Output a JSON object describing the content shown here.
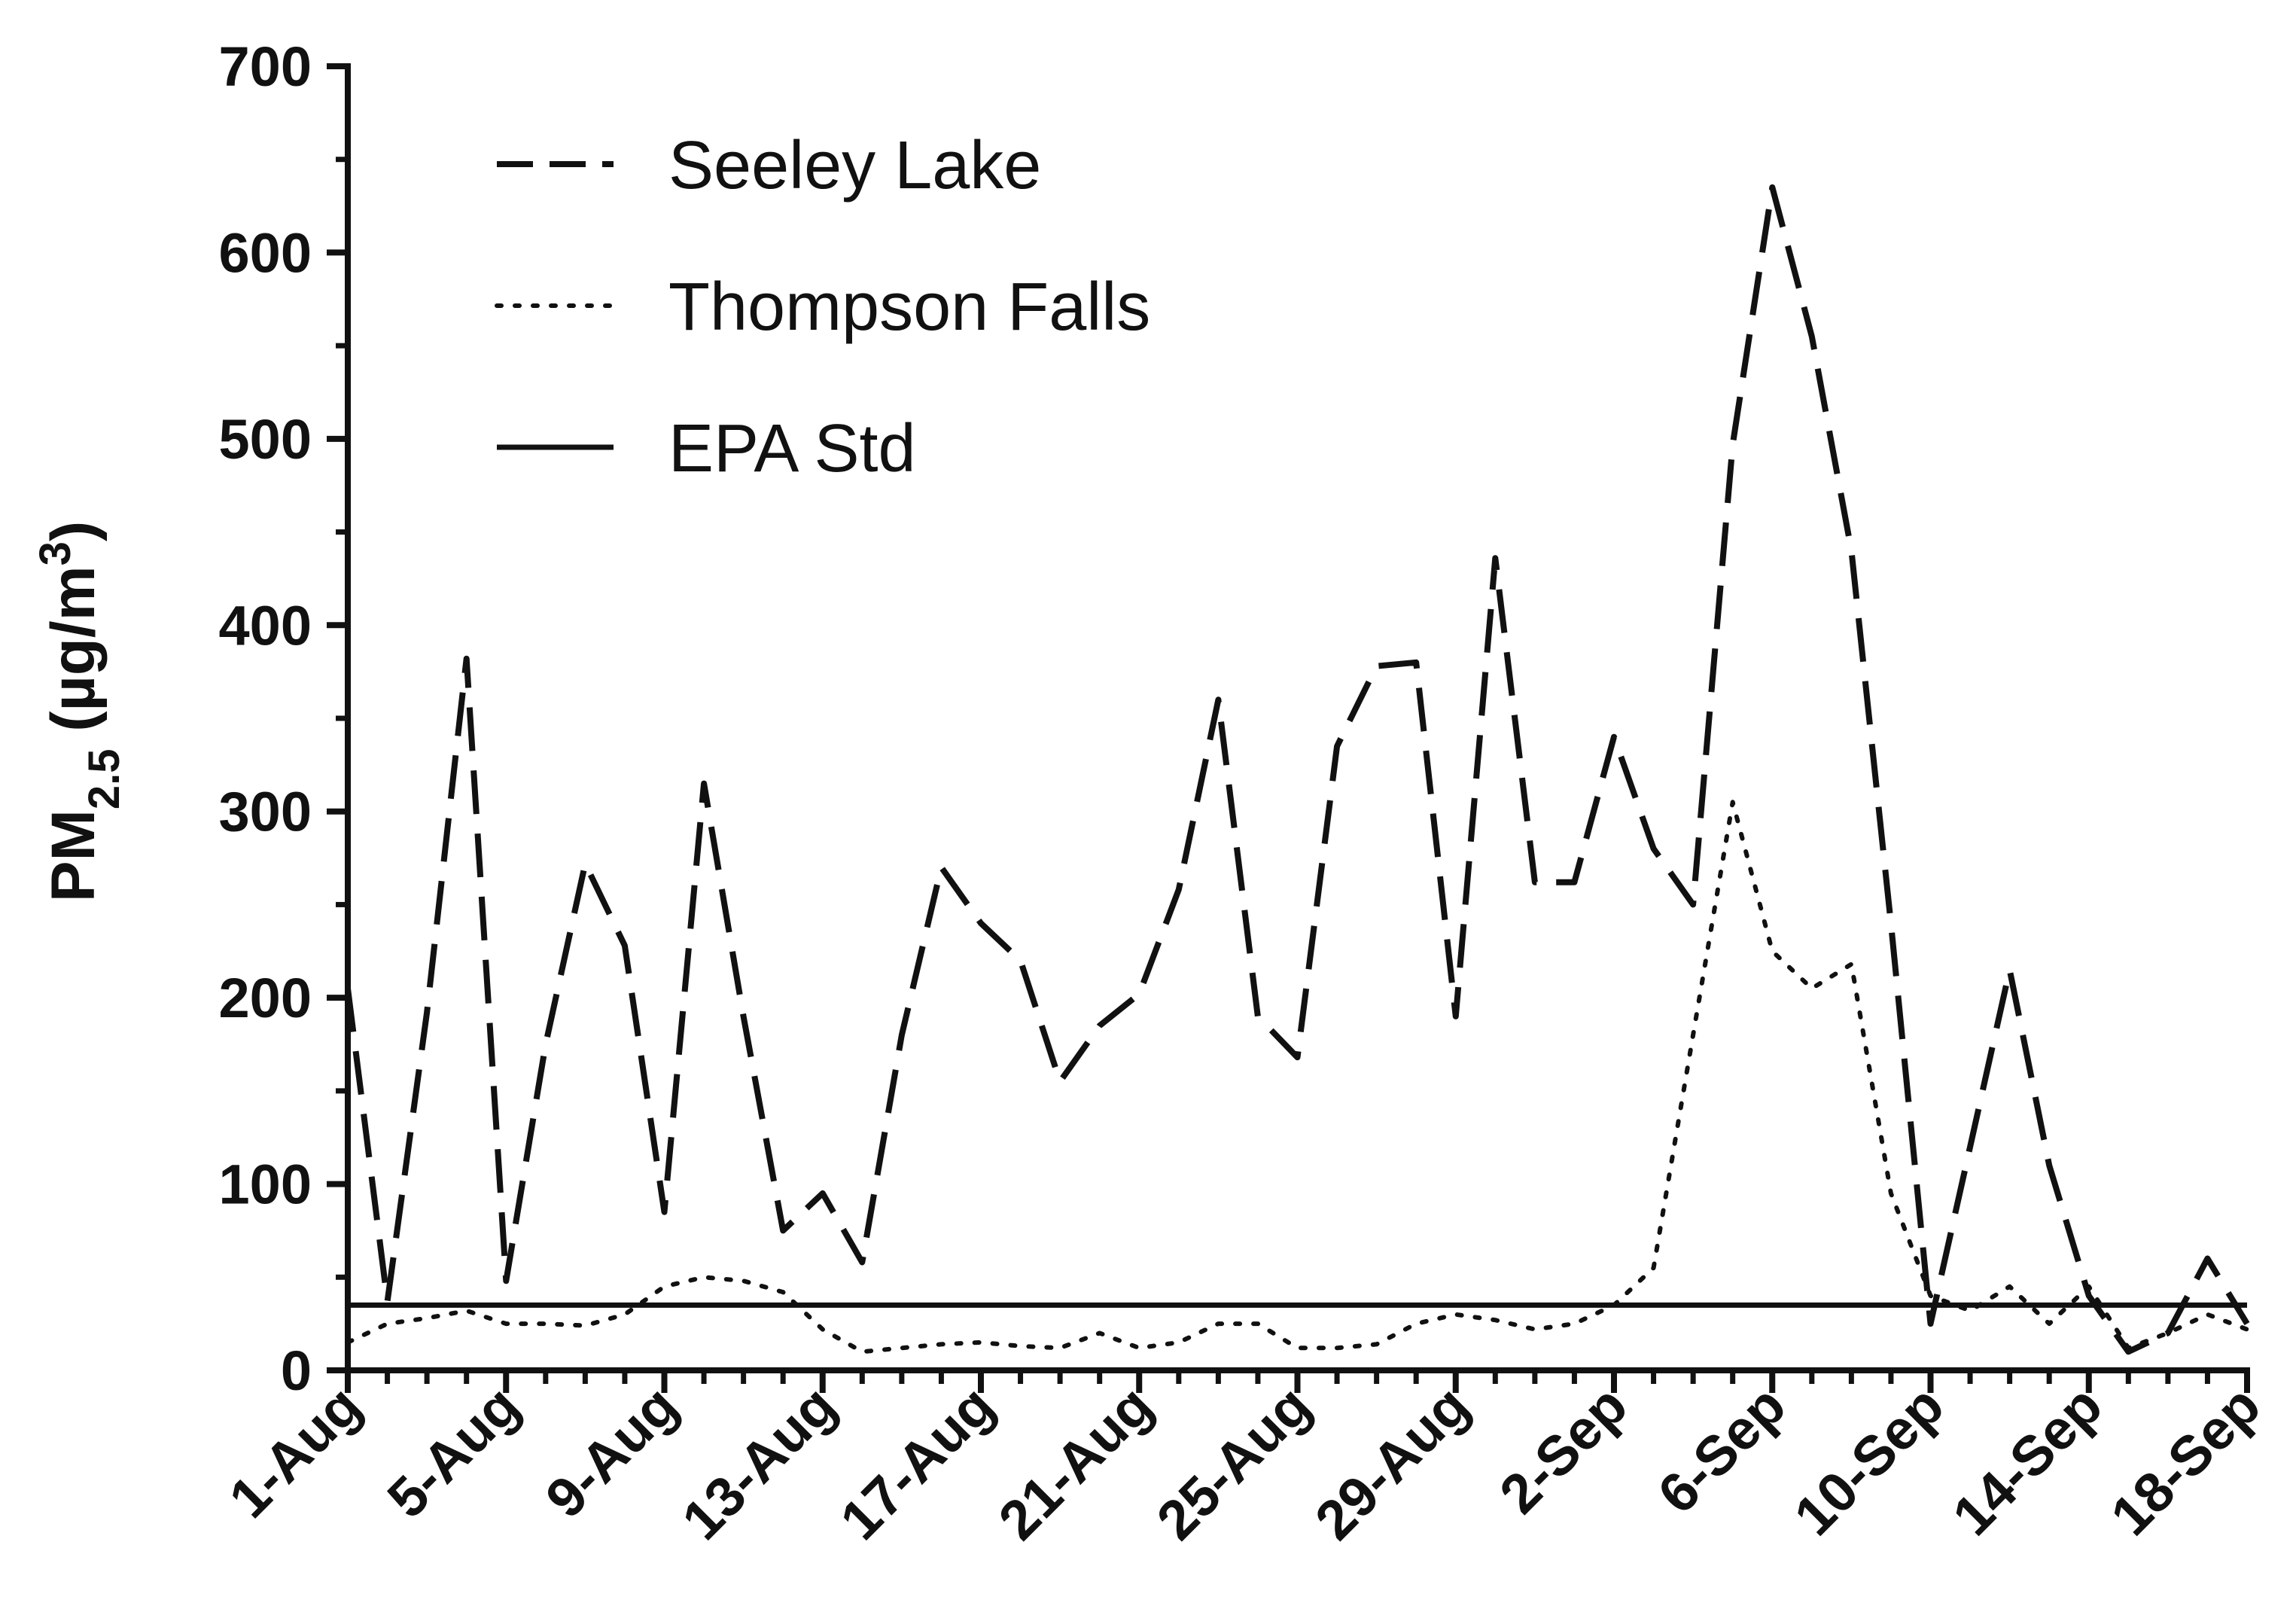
{
  "chart_data": {
    "type": "line",
    "ylabel": {
      "main": "PM",
      "sub": "2.5",
      "unit_open": " (µg/m",
      "sup": "3",
      "unit_close": ")"
    },
    "ylim": [
      0,
      700
    ],
    "yticks": [
      0,
      100,
      200,
      300,
      400,
      500,
      600,
      700
    ],
    "ytick_labels": [
      "0",
      "100",
      "200",
      "300",
      "400",
      "500",
      "600",
      "700"
    ],
    "xlim": [
      "1-Aug",
      "18-Sep"
    ],
    "xtick_labels": [
      "1-Aug",
      "5-Aug",
      "9-Aug",
      "13-Aug",
      "17-Aug",
      "21-Aug",
      "25-Aug",
      "29-Aug",
      "2-Sep",
      "6-Sep",
      "10-Sep",
      "14-Sep",
      "18-Sep"
    ],
    "legend_position": "top-left",
    "grid": false,
    "line_color": "#111111",
    "x": [
      "1-Aug",
      "2-Aug",
      "3-Aug",
      "4-Aug",
      "5-Aug",
      "6-Aug",
      "7-Aug",
      "8-Aug",
      "9-Aug",
      "10-Aug",
      "11-Aug",
      "12-Aug",
      "13-Aug",
      "14-Aug",
      "15-Aug",
      "16-Aug",
      "17-Aug",
      "18-Aug",
      "19-Aug",
      "20-Aug",
      "21-Aug",
      "22-Aug",
      "23-Aug",
      "24-Aug",
      "25-Aug",
      "26-Aug",
      "27-Aug",
      "28-Aug",
      "29-Aug",
      "30-Aug",
      "31-Aug",
      "1-Sep",
      "2-Sep",
      "3-Sep",
      "4-Sep",
      "5-Sep",
      "6-Sep",
      "7-Sep",
      "8-Sep",
      "9-Sep",
      "10-Sep",
      "11-Sep",
      "12-Sep",
      "13-Sep",
      "14-Sep",
      "15-Sep",
      "16-Sep",
      "17-Sep",
      "18-Sep"
    ],
    "series": [
      {
        "name": "Seeley Lake",
        "style": "dashed",
        "values": [
          205,
          37,
          192,
          382,
          48,
          175,
          272,
          228,
          85,
          315,
          190,
          75,
          95,
          58,
          180,
          270,
          240,
          220,
          155,
          185,
          202,
          258,
          360,
          190,
          168,
          335,
          378,
          380,
          190,
          436,
          262,
          262,
          340,
          280,
          250,
          497,
          635,
          555,
          440,
          240,
          25,
          120,
          215,
          110,
          40,
          10,
          20,
          60,
          25
        ]
      },
      {
        "name": "Thompson Falls",
        "style": "dotted",
        "values": [
          15,
          25,
          28,
          32,
          25,
          25,
          24,
          30,
          45,
          50,
          48,
          42,
          22,
          10,
          12,
          14,
          15,
          13,
          12,
          20,
          12,
          15,
          25,
          25,
          12,
          12,
          14,
          25,
          30,
          27,
          22,
          25,
          35,
          55,
          180,
          305,
          225,
          205,
          218,
          95,
          40,
          32,
          45,
          25,
          45,
          12,
          20,
          30,
          22
        ]
      },
      {
        "name": "EPA Std",
        "style": "solid",
        "values": [
          35,
          35,
          35,
          35,
          35,
          35,
          35,
          35,
          35,
          35,
          35,
          35,
          35,
          35,
          35,
          35,
          35,
          35,
          35,
          35,
          35,
          35,
          35,
          35,
          35,
          35,
          35,
          35,
          35,
          35,
          35,
          35,
          35,
          35,
          35,
          35,
          35,
          35,
          35,
          35,
          35,
          35,
          35,
          35,
          35,
          35,
          35,
          35,
          35
        ]
      }
    ]
  }
}
